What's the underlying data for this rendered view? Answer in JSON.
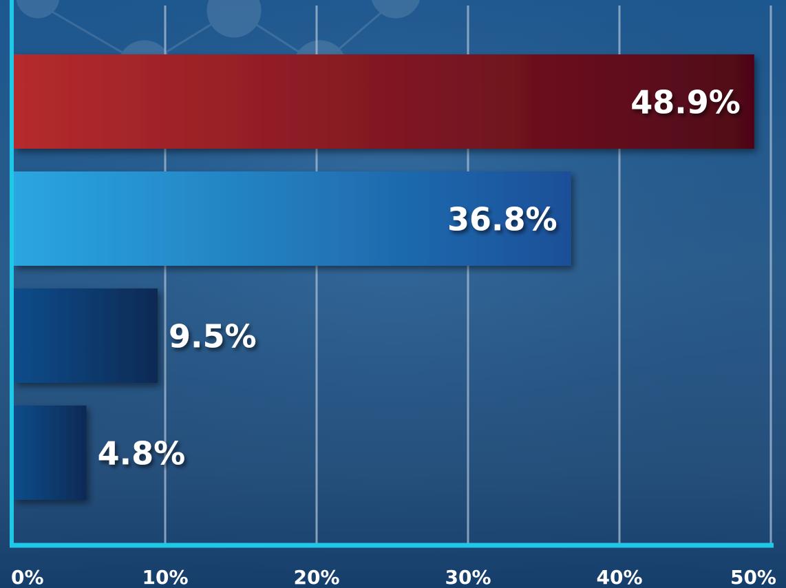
{
  "chart_data": {
    "type": "bar",
    "orientation": "horizontal",
    "values": [
      48.9,
      36.8,
      9.5,
      4.8
    ],
    "value_labels": [
      "48.9%",
      "36.8%",
      "9.5%",
      "4.8%"
    ],
    "xlim": [
      0,
      50
    ],
    "x_ticks": [
      0,
      10,
      20,
      30,
      40,
      50
    ],
    "x_tick_labels": [
      "0%",
      "10%",
      "20%",
      "30%",
      "40%",
      "50%"
    ],
    "grid": true,
    "bar_colors": [
      [
        "#b52b2d",
        "#4e0618"
      ],
      [
        "#2aa6e0",
        "#1a4f98"
      ],
      [
        "#0c4c8a",
        "#0a2a55"
      ],
      [
        "#0c4c8a",
        "#0a2a55"
      ]
    ],
    "axis_color": "#1ec8e6"
  }
}
